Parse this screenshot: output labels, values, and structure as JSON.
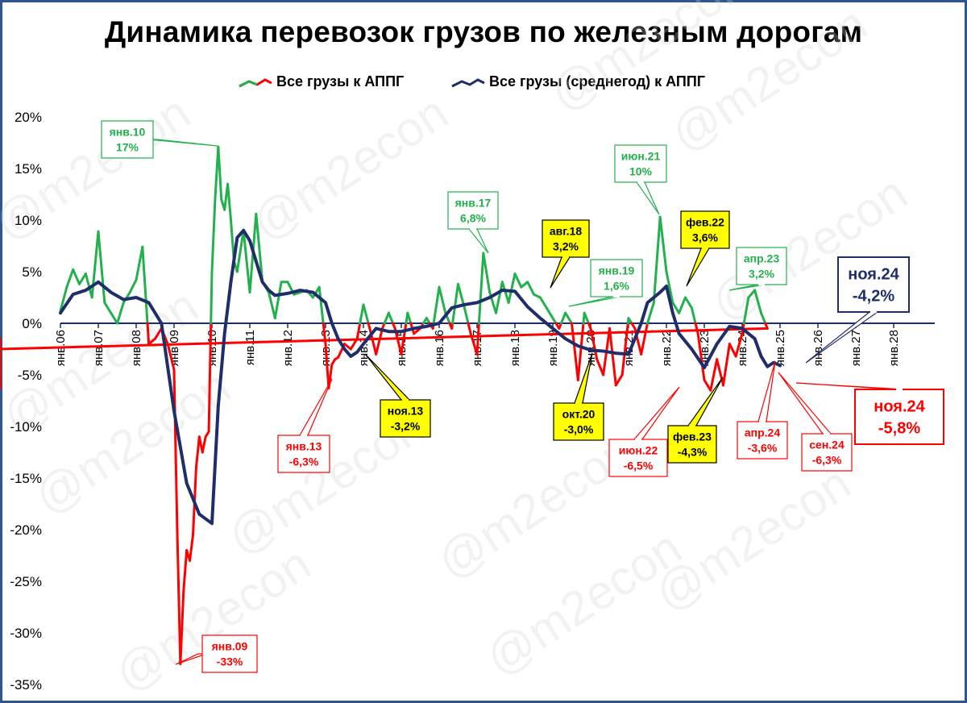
{
  "chart_data": {
    "type": "line",
    "title": "Динамика перевозок грузов по железным дорогам",
    "legend": [
      {
        "name": "Все грузы к АППГ",
        "colors": [
          "#ff0000",
          "#22b14c"
        ]
      },
      {
        "name": "Все грузы (среднегод) к АППГ",
        "color": "#1f2d6b"
      }
    ],
    "legend_position": "top",
    "y_axis": {
      "min": -35,
      "max": 20,
      "step": 5,
      "unit": "%",
      "tick_labels": [
        "20%",
        "15%",
        "10%",
        "5%",
        "0%",
        "-5%",
        "-10%",
        "-15%",
        "-20%",
        "-25%",
        "-30%",
        "-35%"
      ]
    },
    "x_axis": {
      "tick_labels": [
        "янв.06",
        "янв.07",
        "янв.08",
        "янв.09",
        "янв.10",
        "янв.11",
        "янв.12",
        "янв.13",
        "янв.14",
        "янв.15",
        "янв.16",
        "янв.17",
        "янв.18",
        "янв.19",
        "янв.20",
        "янв.21",
        "янв.22",
        "янв.23",
        "янв.24",
        "янв.25",
        "янв.26",
        "янв.27",
        "янв.28"
      ],
      "start_year": 2006
    },
    "grid": false,
    "colors": {
      "positive": "#22b14c",
      "negative": "#ff0000",
      "average": "#1f2d6b",
      "frame": "#2f5597",
      "highlight": "#ffff00"
    },
    "series": [
      {
        "name": "Все грузы к АППГ",
        "x_months_from_jan06": [
          0,
          2,
          4,
          6,
          8,
          10,
          12,
          14,
          16,
          18,
          20,
          22,
          24,
          26,
          28,
          30,
          32,
          34,
          36,
          37,
          38,
          39,
          40,
          41,
          42,
          43,
          44,
          45,
          46,
          47,
          48,
          49,
          50,
          51,
          52,
          53,
          54,
          55,
          56,
          58,
          60,
          62,
          64,
          66,
          68,
          70,
          72,
          74,
          76,
          78,
          80,
          82,
          84,
          85,
          86,
          87,
          88,
          90,
          92,
          94,
          96,
          98,
          100,
          102,
          104,
          106,
          108,
          110,
          112,
          114,
          116,
          118,
          120,
          122,
          124,
          126,
          128,
          130,
          132,
          134,
          136,
          138,
          140,
          142,
          144,
          146,
          148,
          150,
          152,
          154,
          156,
          158,
          160,
          162,
          164,
          166,
          168,
          170,
          172,
          174,
          176,
          178,
          180,
          182,
          184,
          186,
          188,
          190,
          192,
          194,
          196,
          198,
          200,
          202,
          204,
          206,
          208,
          210,
          212,
          214,
          216,
          218,
          220,
          222,
          224
        ],
        "y": [
          1.2,
          3.5,
          5.2,
          3.8,
          4.8,
          2.5,
          8.9,
          2,
          1,
          0,
          2,
          3,
          4.2,
          7.4,
          -2,
          -1.5,
          -0.5,
          -2,
          -4.5,
          -20,
          -33,
          -26,
          -22,
          -23,
          -20.5,
          -14,
          -11,
          -12.5,
          -11,
          -10.5,
          5,
          12,
          17.1,
          12,
          11,
          13.5,
          10,
          6,
          5,
          9,
          3,
          10.6,
          4,
          3,
          0.5,
          4,
          4,
          2.8,
          3,
          3.2,
          2.5,
          3.5,
          -2,
          -6.3,
          -4,
          -3.5,
          -3.3,
          -2,
          -2.5,
          -1.5,
          1.8,
          -0.5,
          -3,
          -0.5,
          1,
          -0.5,
          -3,
          1,
          -1,
          -0.5,
          0.5,
          -0.5,
          3.5,
          1,
          -0.5,
          3.8,
          1.5,
          -1,
          -3,
          6.8,
          3,
          1,
          4,
          2,
          4.8,
          3.5,
          4,
          2.8,
          2.5,
          1.5,
          0.5,
          -0.5,
          1,
          0,
          -5.5,
          1,
          -0.5,
          -3.5,
          -5,
          -0.5,
          -6,
          -5,
          0.5,
          -0.5,
          -3,
          0,
          2,
          10.3,
          5,
          2,
          1,
          2.5,
          1.5,
          -1,
          -5.5,
          -6.5,
          -3.5,
          -6,
          -2,
          -3.2,
          -1,
          2.5,
          3.2,
          1,
          -0.5,
          -2.5,
          -3.5,
          -1.5,
          -3.6,
          -2.5,
          -5.8,
          -6.3,
          -5.8
        ]
      },
      {
        "name": "Все грузы (среднегод) к АППГ",
        "x_months_from_jan06": [
          0,
          4,
          8,
          12,
          16,
          20,
          24,
          28,
          32,
          36,
          40,
          44,
          48,
          50,
          52,
          54,
          56,
          58,
          60,
          62,
          64,
          66,
          68,
          70,
          72,
          76,
          80,
          84,
          86,
          88,
          90,
          92,
          94,
          96,
          100,
          104,
          108,
          112,
          116,
          120,
          124,
          128,
          132,
          136,
          140,
          144,
          148,
          152,
          156,
          160,
          164,
          168,
          172,
          176,
          180,
          184,
          186,
          188,
          190,
          192,
          194,
          196,
          200,
          204,
          208,
          212,
          216,
          220,
          222,
          224,
          226,
          228
        ],
        "y": [
          1,
          2.8,
          3.2,
          4,
          3,
          2.3,
          2.5,
          2,
          0,
          -8.5,
          -15.5,
          -18.5,
          -19.4,
          -8,
          -1,
          4,
          8.3,
          9,
          8,
          6,
          4,
          3.2,
          2.7,
          2.8,
          2.9,
          3.2,
          3,
          2,
          0,
          -1.5,
          -2.5,
          -3.2,
          -2.8,
          -2,
          -0.5,
          -0.8,
          -0.8,
          -0.5,
          -0.3,
          0,
          1.5,
          1.8,
          2,
          2.5,
          3.2,
          3.1,
          1.6,
          0.5,
          -0.5,
          -1.5,
          -2.2,
          -2.6,
          -2.7,
          -2.9,
          -3,
          0,
          2,
          2.5,
          3,
          3.6,
          1,
          -1,
          -2.5,
          -4.3,
          -2,
          -0.3,
          -0.5,
          -1.5,
          -3.2,
          -4.2,
          -3.8,
          -4.1
        ]
      }
    ],
    "annotations": [
      {
        "text": [
          "янв.10",
          "17%"
        ],
        "style": "green"
      },
      {
        "text": [
          "янв.17",
          "6,8%"
        ],
        "style": "green"
      },
      {
        "text": [
          "авг.18",
          "3,2%"
        ],
        "style": "yellow"
      },
      {
        "text": [
          "янв.19",
          "1,6%"
        ],
        "style": "green"
      },
      {
        "text": [
          "июн.21",
          "10%"
        ],
        "style": "green"
      },
      {
        "text": [
          "фев.22",
          "3,6%"
        ],
        "style": "yellow"
      },
      {
        "text": [
          "апр.23",
          "3,2%"
        ],
        "style": "green"
      },
      {
        "text": [
          "ноя.24",
          "-4,2%"
        ],
        "style": "navy-big"
      },
      {
        "text": [
          "ноя.13",
          "-3,2%"
        ],
        "style": "yellow"
      },
      {
        "text": [
          "окт.20",
          "-3,0%"
        ],
        "style": "yellow"
      },
      {
        "text": [
          "янв.13",
          "-6,3%"
        ],
        "style": "red"
      },
      {
        "text": [
          "июн.22",
          "-6,5%"
        ],
        "style": "red"
      },
      {
        "text": [
          "фев.23",
          "-4,3%"
        ],
        "style": "yellow"
      },
      {
        "text": [
          "апр.24",
          "-3,6%"
        ],
        "style": "red"
      },
      {
        "text": [
          "сен.24",
          "-6,3%"
        ],
        "style": "red"
      },
      {
        "text": [
          "ноя.24",
          "-5,8%"
        ],
        "style": "red-big"
      },
      {
        "text": [
          "янв.09",
          "-33%"
        ],
        "style": "red"
      }
    ],
    "watermark": "@m2econ"
  }
}
